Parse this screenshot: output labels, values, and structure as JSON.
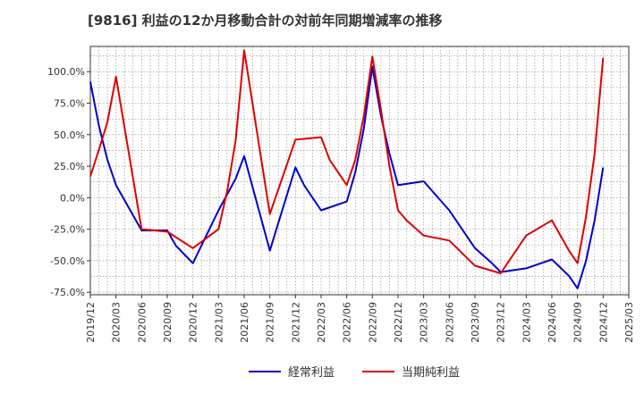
{
  "chart_data": {
    "type": "line",
    "title": "[9816]  利益の12か月移動合計の対前年同期増減率の推移",
    "xlabel": "",
    "ylabel": "",
    "ylim": [
      -77,
      120
    ],
    "yticks": [
      100,
      75,
      50,
      25,
      0,
      -25,
      -50,
      -75
    ],
    "ytick_labels": [
      "100.0%",
      "75.0%",
      "50.0%",
      "25.0%",
      "0.0%",
      "-25.0%",
      "-50.0%",
      "-75.0%"
    ],
    "categories": [
      "2019/12",
      "2020/03",
      "2020/06",
      "2020/09",
      "2020/12",
      "2021/03",
      "2021/06",
      "2021/09",
      "2021/12",
      "2022/03",
      "2022/06",
      "2022/09",
      "2022/12",
      "2023/03",
      "2023/06",
      "2023/09",
      "2023/12",
      "2024/03",
      "2024/06",
      "2024/09",
      "2024/12",
      "2025/03"
    ],
    "grid": true,
    "legend_position": "bottom",
    "series": [
      {
        "name": "経常利益",
        "color": "#0000cc",
        "points": [
          [
            "2019/12",
            92
          ],
          [
            "2020/01",
            57
          ],
          [
            "2020/02",
            30
          ],
          [
            "2020/03",
            10
          ],
          [
            "2020/06",
            -26
          ],
          [
            "2020/09",
            -26
          ],
          [
            "2020/10",
            -38
          ],
          [
            "2020/12",
            -52
          ],
          [
            "2021/03",
            -10
          ],
          [
            "2021/05",
            15
          ],
          [
            "2021/06",
            33
          ],
          [
            "2021/09",
            -42
          ],
          [
            "2021/10",
            -20
          ],
          [
            "2021/12",
            24
          ],
          [
            "2022/01",
            10
          ],
          [
            "2022/03",
            -10
          ],
          [
            "2022/06",
            -3
          ],
          [
            "2022/07",
            20
          ],
          [
            "2022/08",
            55
          ],
          [
            "2022/09",
            104
          ],
          [
            "2022/10",
            65
          ],
          [
            "2022/11",
            35
          ],
          [
            "2022/12",
            10
          ],
          [
            "2023/03",
            13
          ],
          [
            "2023/06",
            -10
          ],
          [
            "2023/09",
            -40
          ],
          [
            "2023/11",
            -52
          ],
          [
            "2023/12",
            -59
          ],
          [
            "2024/03",
            -56
          ],
          [
            "2024/06",
            -49
          ],
          [
            "2024/08",
            -62
          ],
          [
            "2024/09",
            -72
          ],
          [
            "2024/10",
            -50
          ],
          [
            "2024/11",
            -18
          ],
          [
            "2024/12",
            24
          ]
        ]
      },
      {
        "name": "当期純利益",
        "color": "#dd0000",
        "points": [
          [
            "2019/12",
            17
          ],
          [
            "2020/01",
            38
          ],
          [
            "2020/02",
            60
          ],
          [
            "2020/03",
            96
          ],
          [
            "2020/06",
            -25
          ],
          [
            "2020/09",
            -27
          ],
          [
            "2020/12",
            -40
          ],
          [
            "2021/03",
            -25
          ],
          [
            "2021/04",
            5
          ],
          [
            "2021/05",
            45
          ],
          [
            "2021/06",
            117
          ],
          [
            "2021/09",
            -13
          ],
          [
            "2021/12",
            46
          ],
          [
            "2022/03",
            48
          ],
          [
            "2022/04",
            30
          ],
          [
            "2022/06",
            10
          ],
          [
            "2022/07",
            30
          ],
          [
            "2022/08",
            65
          ],
          [
            "2022/09",
            112
          ],
          [
            "2022/10",
            70
          ],
          [
            "2022/11",
            25
          ],
          [
            "2022/12",
            -10
          ],
          [
            "2023/01",
            -18
          ],
          [
            "2023/03",
            -30
          ],
          [
            "2023/06",
            -34
          ],
          [
            "2023/09",
            -54
          ],
          [
            "2023/12",
            -60
          ],
          [
            "2024/03",
            -30
          ],
          [
            "2024/06",
            -18
          ],
          [
            "2024/07",
            -30
          ],
          [
            "2024/08",
            -42
          ],
          [
            "2024/09",
            -52
          ],
          [
            "2024/10",
            -15
          ],
          [
            "2024/11",
            35
          ],
          [
            "2024/12",
            111
          ]
        ]
      }
    ]
  }
}
